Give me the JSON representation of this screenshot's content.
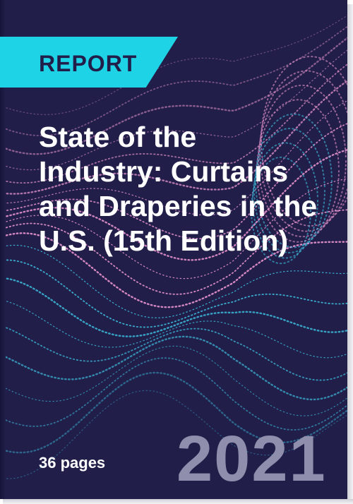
{
  "badge": {
    "label": "REPORT"
  },
  "title": "State of the Industry: Curtains and Draperies in the U.S. (15th Edition)",
  "pages": "36 pages",
  "year": "2021",
  "colors": {
    "background": "#211f4a",
    "badge": "#1fd3e6",
    "wave_pink": "#f59ad6",
    "wave_cyan": "#3fc8e8",
    "year_text": "#8f8fad"
  }
}
